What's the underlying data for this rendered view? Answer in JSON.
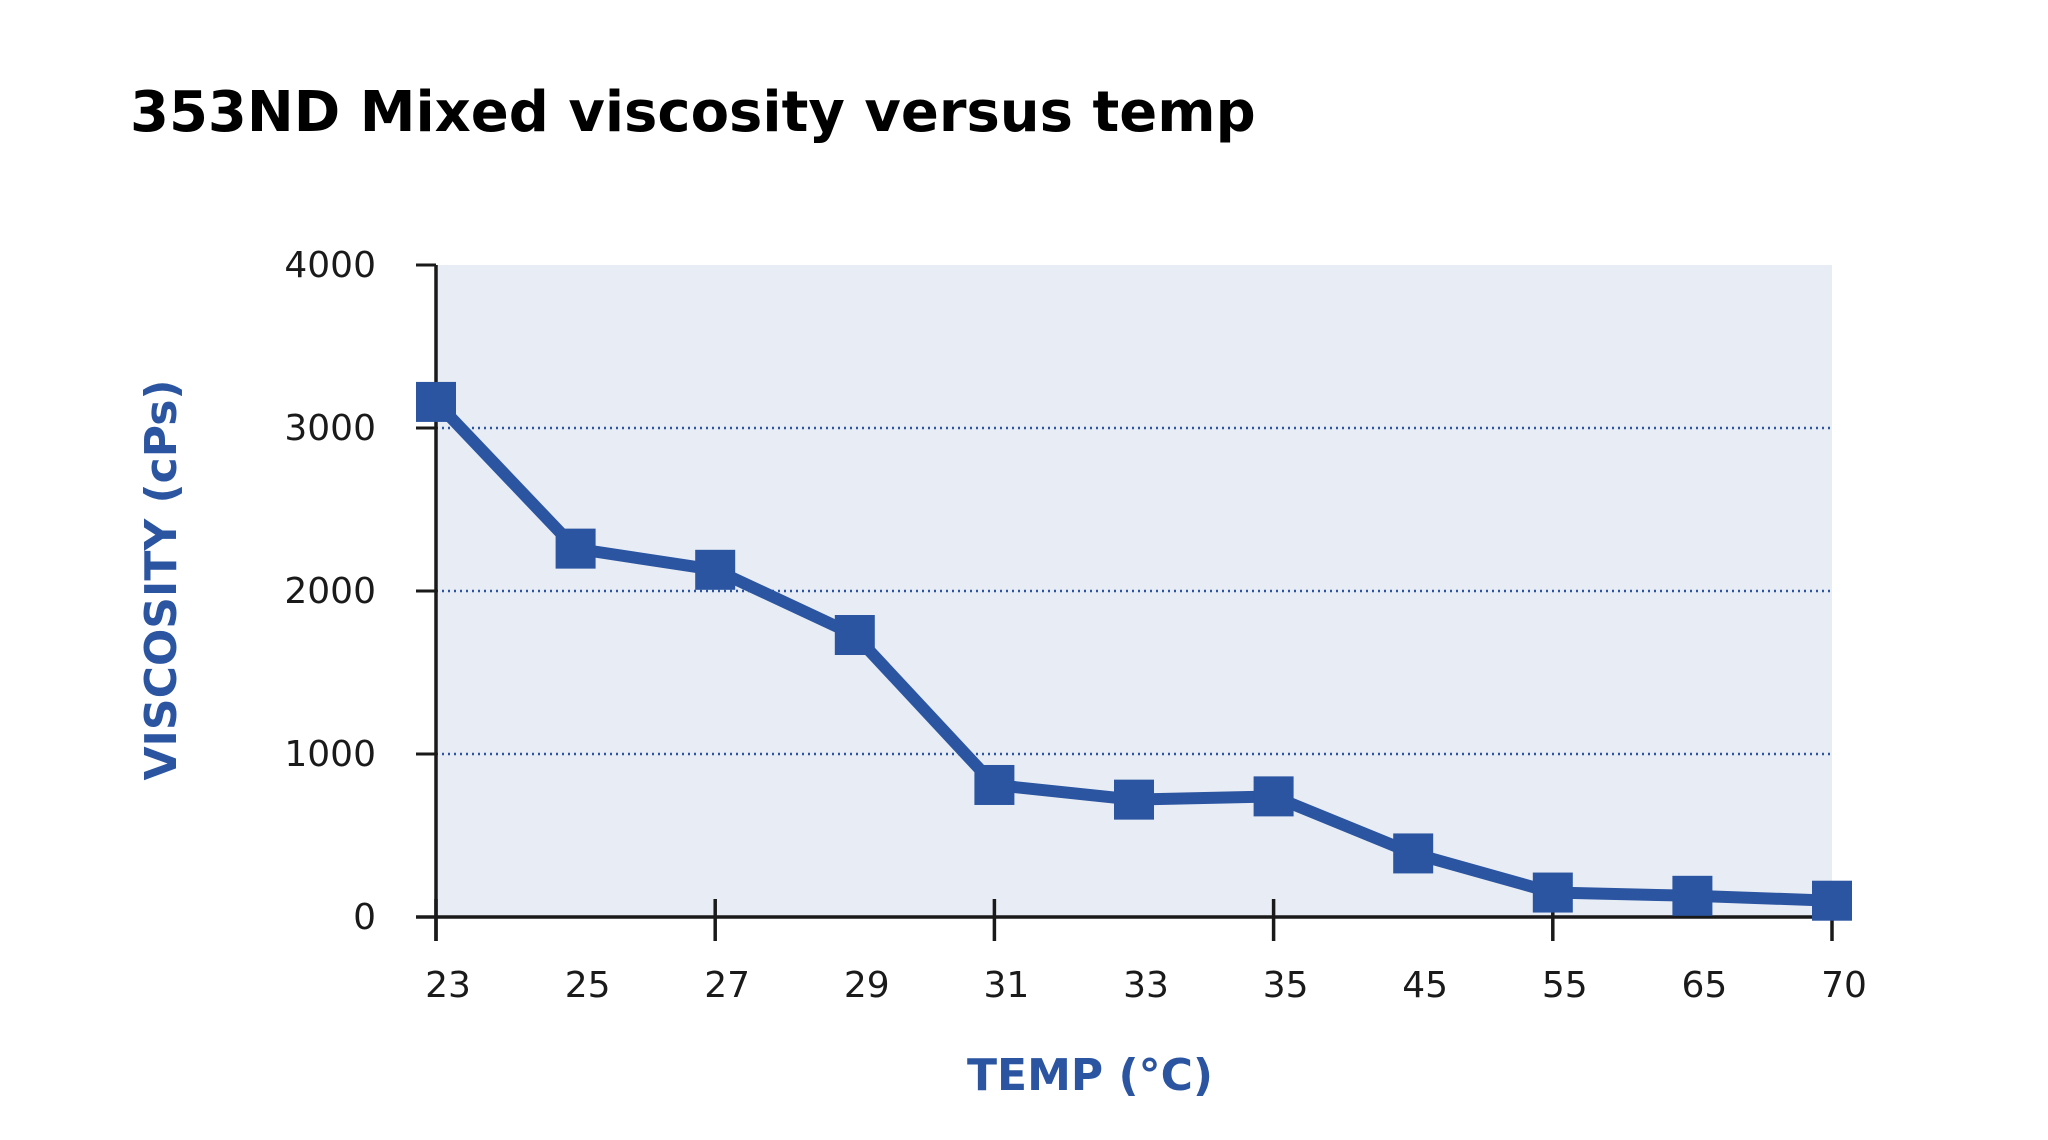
{
  "chart_data": {
    "type": "line",
    "title": "353ND Mixed viscosity versus temp",
    "xlabel": "TEMP (°C)",
    "ylabel": "VISCOSITY (cPs)",
    "categories": [
      "23",
      "25",
      "27",
      "29",
      "31",
      "33",
      "35",
      "45",
      "55",
      "65",
      "70"
    ],
    "y_ticks": [
      "0",
      "1000",
      "2000",
      "3000",
      "4000"
    ],
    "ylim": [
      0,
      4000
    ],
    "grid": "horizontal dotted",
    "series": [
      {
        "values": [
          3160,
          2260,
          2130,
          1730,
          810,
          720,
          740,
          390,
          150,
          130,
          100
        ]
      }
    ],
    "colors": {
      "series": "#2b55a1",
      "plot_background": "#e8edf5",
      "axis_title": "#2b55a1",
      "grid": "#2b55a1"
    }
  }
}
